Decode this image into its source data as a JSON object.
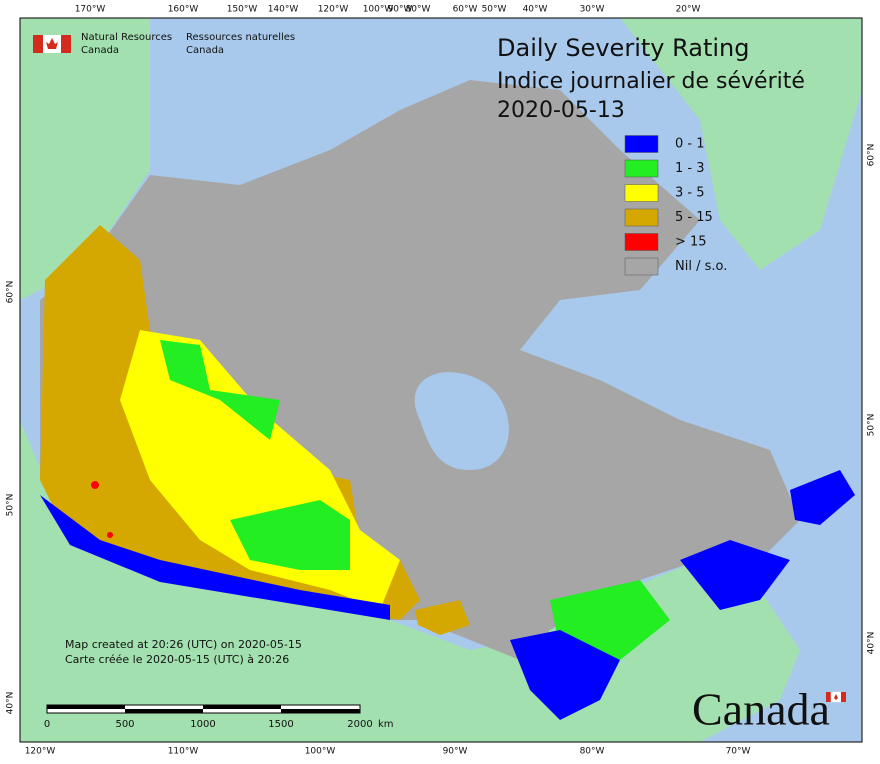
{
  "header": {
    "org_en": [
      "Natural Resources",
      "Canada"
    ],
    "org_fr": [
      "Ressources naturelles",
      "Canada"
    ]
  },
  "title": [
    "Daily Severity Rating",
    "Indice journalier de sévérité",
    "2020-05-13"
  ],
  "legend": [
    {
      "label": "0 - 1",
      "color": "#0000ff"
    },
    {
      "label": "1 - 3",
      "color": "#22ee22"
    },
    {
      "label": "3 - 5",
      "color": "#ffff00"
    },
    {
      "label": "5 - 15",
      "color": "#d4a800"
    },
    {
      "label": "> 15",
      "color": "#ff0000"
    },
    {
      "label": "Nil / s.o.",
      "color": "#a6a6a6"
    }
  ],
  "graticule": {
    "top": [
      "170°W",
      "160°W",
      "150°W",
      "140°W",
      "120°W",
      "100°W",
      "90°W",
      "80°W",
      "60°W",
      "50°W",
      "40°W",
      "30°W",
      "20°W"
    ],
    "bottom": [
      "120°W",
      "110°W",
      "100°W",
      "90°W",
      "80°W",
      "70°W"
    ],
    "left": [
      "60°N",
      "50°N",
      "40°N"
    ],
    "right": [
      "60°N",
      "50°N",
      "40°N"
    ]
  },
  "footer": [
    "Map created at 20:26 (UTC) on 2020-05-15",
    "Carte créée le 2020-05-15 (UTC) à 20:26"
  ],
  "scale_bar": {
    "labels": [
      "0",
      "500",
      "1000",
      "1500",
      "2000"
    ],
    "unit": "km"
  },
  "wordmark": "Canada"
}
